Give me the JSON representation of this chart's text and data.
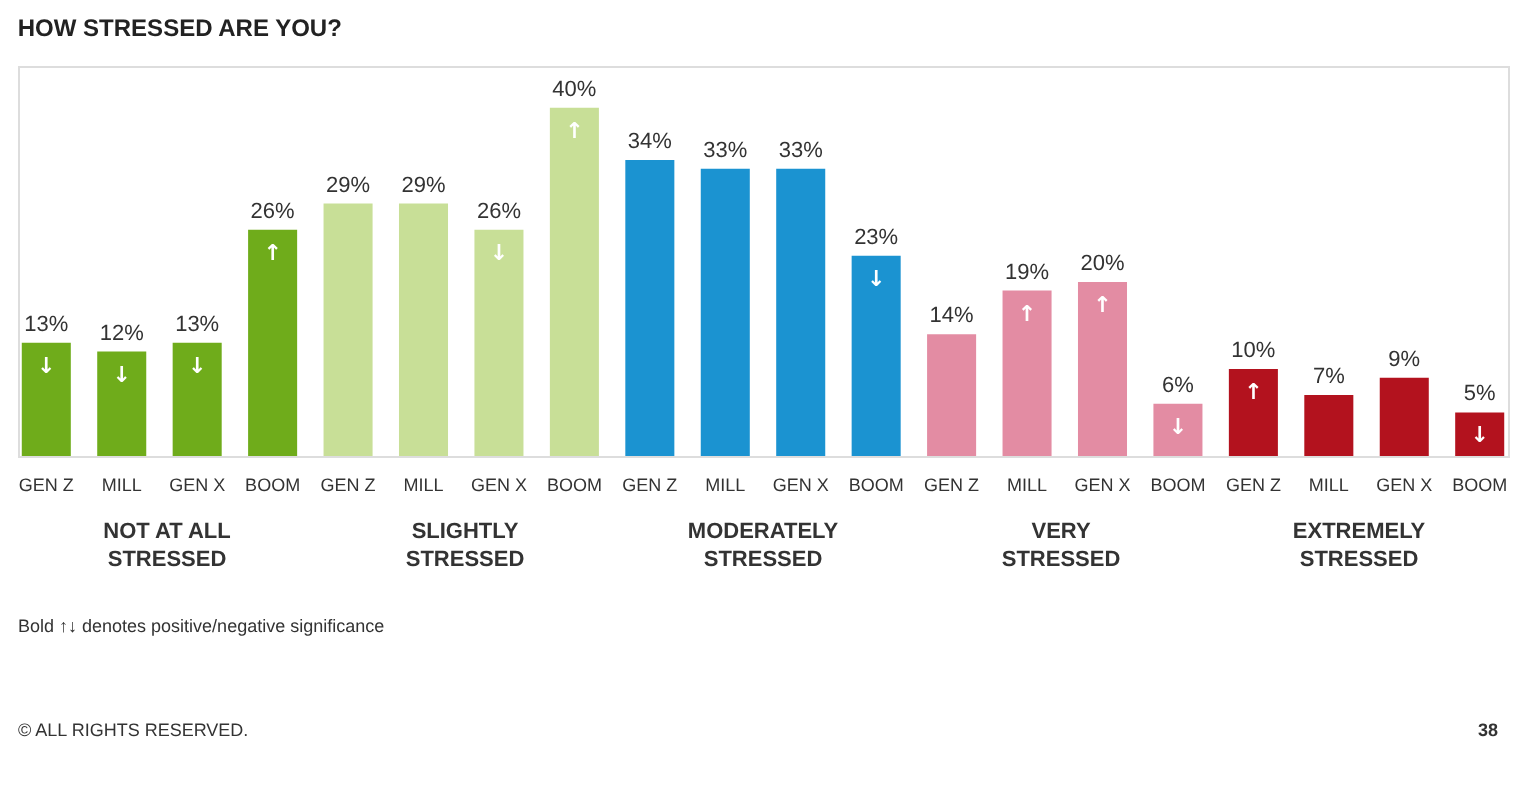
{
  "chart_data": {
    "type": "bar",
    "title": "HOW STRESSED ARE YOU?",
    "categories": [
      "GEN Z",
      "MILL",
      "GEN X",
      "BOOM",
      "GEN Z",
      "MILL",
      "GEN X",
      "BOOM",
      "GEN Z",
      "MILL",
      "GEN X",
      "BOOM",
      "GEN Z",
      "MILL",
      "GEN X",
      "BOOM",
      "GEN Z",
      "MILL",
      "GEN X",
      "BOOM"
    ],
    "values": [
      13,
      12,
      13,
      26,
      29,
      29,
      26,
      40,
      34,
      33,
      33,
      23,
      14,
      19,
      20,
      6,
      10,
      7,
      9,
      5
    ],
    "value_labels": [
      "13%",
      "12%",
      "13%",
      "26%",
      "29%",
      "29%",
      "26%",
      "40%",
      "34%",
      "33%",
      "33%",
      "23%",
      "14%",
      "19%",
      "20%",
      "6%",
      "10%",
      "7%",
      "9%",
      "5%"
    ],
    "colors": [
      "#6fac1b",
      "#6fac1b",
      "#6fac1b",
      "#6fac1b",
      "#c8df97",
      "#c8df97",
      "#c8df97",
      "#c8df97",
      "#1b93d1",
      "#1b93d1",
      "#1b93d1",
      "#1b93d1",
      "#e38ca3",
      "#e38ca3",
      "#e38ca3",
      "#e38ca3",
      "#b3121e",
      "#b3121e",
      "#b3121e",
      "#b3121e"
    ],
    "annotations": [
      "NOT AT ALL STRESSED",
      "SLIGHTLY STRESSED",
      "MODERATELY STRESSED",
      "VERY STRESSED",
      "EXTREMELY STRESSED",
      "Bold ↑↓ denotes positive/negative significance",
      "© ALL RIGHTS RESERVED.",
      "38",
      {
        "text": "↓",
        "y": 13
      },
      {
        "text": "↓",
        "y": 12
      },
      {
        "text": "↓",
        "y": 13
      },
      {
        "text": "↑",
        "y": 26
      },
      {
        "text": "↓",
        "y": 26
      },
      {
        "text": "↑",
        "y": 40
      },
      {
        "text": "↓",
        "y": 23
      },
      {
        "text": "↑",
        "y": 19
      },
      {
        "text": "↑",
        "y": 20
      },
      {
        "text": "↓",
        "y": 6
      },
      {
        "text": "↑",
        "y": 10
      },
      {
        "text": "↓",
        "y": 5
      }
    ],
    "grid": false
  }
}
